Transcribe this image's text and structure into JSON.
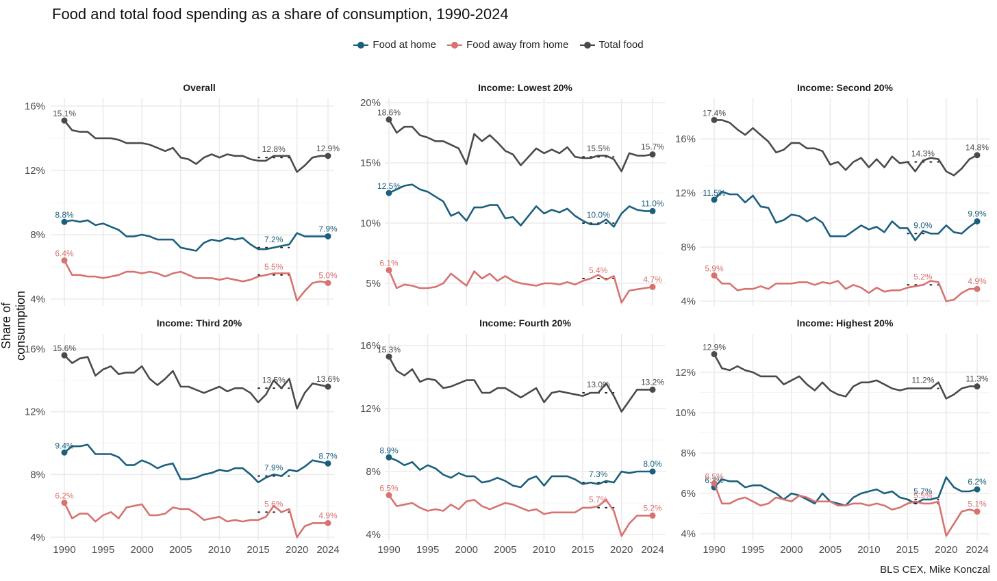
{
  "title": "Food and total food spending as a share of consumption, 1990-2024",
  "ylabel": "Share of consumption",
  "caption": "BLS CEX, Mike Konczal",
  "legend": [
    {
      "label": "Food at home",
      "color": "#1b5f7e"
    },
    {
      "label": "Food away from home",
      "color": "#d7726f"
    },
    {
      "label": "Total food",
      "color": "#4a4a4a"
    }
  ],
  "chart_data": {
    "type": "line",
    "title": "Food and total food spending as a share of consumption, 1990-2024",
    "xlabel": "",
    "ylabel": "Share of consumption",
    "x_ticks": [
      "1990",
      "1995",
      "2000",
      "2005",
      "2010",
      "2015",
      "2020",
      "2024"
    ],
    "x": [
      1990,
      1991,
      1992,
      1993,
      1994,
      1995,
      1996,
      1997,
      1998,
      1999,
      2000,
      2001,
      2002,
      2003,
      2004,
      2005,
      2006,
      2007,
      2008,
      2009,
      2010,
      2011,
      2012,
      2013,
      2014,
      2015,
      2016,
      2017,
      2018,
      2019,
      2020,
      2021,
      2022,
      2023,
      2024
    ],
    "legend_position": "top",
    "grid": true,
    "panels": [
      {
        "title": "Overall",
        "ylim": [
          3.8,
          16.3
        ],
        "yticks": [
          4,
          8,
          12,
          16
        ],
        "ytick_labels": [
          "4%",
          "8%",
          "12%",
          "16%"
        ],
        "series": [
          {
            "name": "Total food",
            "values": [
              15.1,
              14.5,
              14.4,
              14.4,
              14.0,
              14.0,
              14.0,
              13.9,
              13.7,
              13.7,
              13.7,
              13.6,
              13.4,
              13.2,
              13.4,
              12.8,
              12.7,
              12.4,
              12.8,
              13.0,
              12.8,
              13.0,
              12.9,
              12.9,
              12.7,
              12.6,
              12.6,
              12.9,
              12.9,
              12.9,
              11.9,
              12.3,
              12.8,
              12.9,
              12.9
            ],
            "start_label": "15.1%",
            "mid_label": "12.8%",
            "end_label": "12.9%",
            "mid_avg": 12.8
          },
          {
            "name": "Food at home",
            "values": [
              8.8,
              8.9,
              8.8,
              8.9,
              8.6,
              8.7,
              8.5,
              8.3,
              7.9,
              7.9,
              8.0,
              7.9,
              7.7,
              7.7,
              7.7,
              7.2,
              7.1,
              7.0,
              7.5,
              7.7,
              7.6,
              7.8,
              7.7,
              7.8,
              7.4,
              7.1,
              7.1,
              7.2,
              7.3,
              7.4,
              8.1,
              7.9,
              7.9,
              7.9,
              7.9
            ],
            "start_label": "8.8%",
            "mid_label": "7.2%",
            "end_label": "7.9%",
            "mid_avg": 7.2
          },
          {
            "name": "Food away from home",
            "values": [
              6.4,
              5.5,
              5.5,
              5.4,
              5.4,
              5.3,
              5.4,
              5.5,
              5.7,
              5.7,
              5.6,
              5.7,
              5.6,
              5.4,
              5.6,
              5.7,
              5.5,
              5.3,
              5.3,
              5.3,
              5.2,
              5.3,
              5.2,
              5.1,
              5.2,
              5.4,
              5.5,
              5.6,
              5.6,
              5.6,
              3.9,
              4.5,
              5.0,
              5.1,
              5.0
            ],
            "start_label": "6.4%",
            "mid_label": "5.5%",
            "end_label": "5.0%",
            "mid_avg": 5.5
          }
        ]
      },
      {
        "title": "Income: Lowest 20%",
        "ylim": [
          3.3,
          20.3
        ],
        "yticks": [
          5,
          10,
          15,
          20
        ],
        "ytick_labels": [
          "5%",
          "10%",
          "15%",
          "20%"
        ],
        "series": [
          {
            "name": "Total food",
            "values": [
              18.6,
              17.5,
              18.0,
              18.0,
              17.3,
              17.1,
              16.8,
              16.8,
              16.5,
              16.2,
              14.9,
              17.4,
              16.8,
              17.3,
              16.7,
              16.0,
              15.7,
              14.8,
              15.5,
              16.2,
              15.8,
              16.1,
              15.8,
              16.3,
              15.5,
              15.4,
              15.4,
              15.6,
              15.6,
              15.3,
              14.3,
              15.8,
              15.6,
              15.6,
              15.7
            ],
            "start_label": "18.6%",
            "mid_label": "15.5%",
            "end_label": "15.7%",
            "mid_avg": 15.5
          },
          {
            "name": "Food at home",
            "values": [
              12.5,
              12.8,
              13.1,
              13.2,
              12.8,
              12.6,
              12.2,
              11.8,
              10.6,
              10.9,
              10.2,
              11.3,
              11.3,
              11.5,
              11.5,
              10.4,
              10.5,
              9.8,
              10.6,
              11.4,
              10.8,
              11.1,
              10.9,
              11.2,
              10.6,
              10.2,
              9.9,
              9.9,
              10.3,
              9.7,
              10.8,
              11.4,
              11.1,
              11.0,
              11.0
            ],
            "start_label": "12.5%",
            "mid_label": "10.0%",
            "end_label": "11.0%",
            "mid_avg": 10.0
          },
          {
            "name": "Food away from home",
            "values": [
              6.1,
              4.6,
              4.9,
              4.8,
              4.6,
              4.6,
              4.7,
              5.0,
              5.8,
              5.3,
              4.8,
              6.0,
              5.4,
              5.8,
              5.2,
              5.6,
              5.2,
              5.0,
              4.9,
              4.8,
              5.0,
              5.0,
              4.9,
              5.1,
              4.9,
              5.2,
              5.4,
              5.7,
              5.3,
              5.6,
              3.4,
              4.4,
              4.5,
              4.6,
              4.7
            ],
            "start_label": "6.1%",
            "mid_label": "5.4%",
            "end_label": "4.7%",
            "mid_avg": 5.4
          }
        ]
      },
      {
        "title": "Income: Second 20%",
        "ylim": [
          3.8,
          18.0
        ],
        "yticks": [
          4,
          8,
          12,
          16
        ],
        "ytick_labels": [
          "4%",
          "8%",
          "12%",
          "16%"
        ],
        "series": [
          {
            "name": "Total food",
            "values": [
              17.4,
              17.4,
              17.2,
              16.7,
              16.3,
              16.8,
              16.3,
              15.8,
              15.0,
              15.2,
              15.7,
              15.7,
              15.3,
              15.3,
              15.1,
              14.1,
              14.3,
              13.7,
              14.3,
              14.6,
              13.9,
              14.5,
              13.9,
              14.7,
              14.2,
              14.3,
              13.6,
              14.4,
              14.6,
              14.5,
              13.6,
              13.3,
              13.8,
              14.5,
              14.8
            ],
            "start_label": "17.4%",
            "mid_label": "14.3%",
            "end_label": "14.8%",
            "mid_avg": 14.3
          },
          {
            "name": "Food at home",
            "values": [
              11.5,
              12.1,
              11.9,
              11.9,
              11.3,
              11.8,
              11.0,
              10.9,
              9.8,
              10.0,
              10.4,
              10.3,
              9.9,
              10.2,
              9.8,
              8.8,
              8.8,
              8.8,
              9.2,
              9.6,
              9.3,
              9.5,
              9.1,
              9.9,
              9.4,
              9.4,
              8.5,
              9.2,
              9.0,
              9.0,
              9.6,
              9.1,
              9.0,
              9.5,
              9.9
            ],
            "start_label": "11.5%",
            "mid_label": "9.0%",
            "end_label": "9.9%",
            "mid_avg": 9.0
          },
          {
            "name": "Food away from home",
            "values": [
              5.9,
              5.3,
              5.3,
              4.8,
              4.9,
              4.9,
              5.1,
              4.9,
              5.3,
              5.3,
              5.3,
              5.4,
              5.4,
              5.2,
              5.4,
              5.3,
              5.5,
              4.9,
              5.2,
              5.0,
              4.6,
              5.0,
              4.7,
              4.8,
              4.8,
              5.0,
              5.1,
              5.2,
              5.5,
              5.4,
              4.0,
              4.1,
              4.6,
              4.9,
              4.9
            ],
            "start_label": "5.9%",
            "mid_label": "5.2%",
            "end_label": "4.9%",
            "mid_avg": 5.2
          }
        ]
      },
      {
        "title": "Income: Third 20%",
        "ylim": [
          3.8,
          16.8
        ],
        "yticks": [
          4,
          8,
          12,
          16
        ],
        "ytick_labels": [
          "4%",
          "8%",
          "12%",
          "16%"
        ],
        "series": [
          {
            "name": "Total food",
            "values": [
              15.6,
              15.1,
              15.4,
              15.5,
              14.3,
              14.7,
              14.9,
              14.4,
              14.5,
              14.5,
              14.9,
              14.1,
              13.7,
              14.1,
              14.6,
              13.6,
              13.6,
              13.4,
              13.2,
              13.4,
              13.6,
              13.3,
              13.5,
              13.5,
              13.2,
              12.6,
              13.1,
              14.0,
              13.5,
              14.1,
              12.2,
              13.2,
              13.8,
              13.7,
              13.6
            ],
            "start_label": "15.6%",
            "mid_label": "13.5%",
            "end_label": "13.6%",
            "mid_avg": 13.5
          },
          {
            "name": "Food at home",
            "values": [
              9.4,
              9.8,
              9.8,
              9.9,
              9.3,
              9.3,
              9.3,
              9.1,
              8.6,
              8.6,
              8.9,
              8.7,
              8.4,
              8.6,
              8.7,
              7.7,
              7.7,
              7.8,
              8.0,
              8.1,
              8.3,
              8.2,
              8.4,
              8.4,
              8.0,
              7.5,
              7.8,
              8.0,
              7.9,
              8.3,
              8.2,
              8.5,
              8.9,
              8.8,
              8.7
            ],
            "start_label": "9.4%",
            "mid_label": "7.9%",
            "end_label": "8.7%",
            "mid_avg": 7.9
          },
          {
            "name": "Food away from home",
            "values": [
              6.2,
              5.2,
              5.5,
              5.5,
              5.0,
              5.4,
              5.6,
              5.2,
              5.9,
              6.0,
              6.1,
              5.4,
              5.4,
              5.5,
              5.9,
              5.8,
              5.8,
              5.5,
              5.1,
              5.2,
              5.3,
              5.0,
              5.1,
              5.0,
              5.1,
              5.1,
              5.3,
              6.0,
              5.6,
              5.8,
              4.0,
              4.7,
              4.9,
              4.9,
              4.9
            ],
            "start_label": "6.2%",
            "mid_label": "5.6%",
            "end_label": "4.9%",
            "mid_avg": 5.6
          }
        ]
      },
      {
        "title": "Income: Fourth 20%",
        "ylim": [
          3.8,
          16.3
        ],
        "yticks": [
          4,
          8,
          12,
          16
        ],
        "ytick_labels": [
          "4%",
          "8%",
          "12%",
          "16%"
        ],
        "series": [
          {
            "name": "Total food",
            "values": [
              15.3,
              14.4,
              14.1,
              14.5,
              13.7,
              13.9,
              13.8,
              13.3,
              13.4,
              13.6,
              13.8,
              13.8,
              13.0,
              13.0,
              13.3,
              13.3,
              13.0,
              12.7,
              13.0,
              13.3,
              12.4,
              13.0,
              13.1,
              13.0,
              12.9,
              12.8,
              13.0,
              13.0,
              13.6,
              12.8,
              11.8,
              12.5,
              13.2,
              13.2,
              13.2
            ],
            "start_label": "15.3%",
            "mid_label": "13.0%",
            "end_label": "13.2%",
            "mid_avg": 13.0
          },
          {
            "name": "Food at home",
            "values": [
              8.9,
              8.7,
              8.4,
              8.6,
              8.1,
              8.4,
              8.2,
              7.8,
              7.6,
              7.9,
              7.7,
              7.7,
              7.3,
              7.4,
              7.6,
              7.4,
              7.1,
              7.0,
              7.5,
              7.7,
              7.1,
              7.7,
              7.7,
              7.7,
              7.5,
              7.2,
              7.3,
              7.2,
              7.4,
              7.3,
              8.0,
              7.9,
              8.0,
              8.0,
              8.0
            ],
            "start_label": "8.9%",
            "mid_label": "7.3%",
            "end_label": "8.0%",
            "mid_avg": 7.3
          },
          {
            "name": "Food away from home",
            "values": [
              6.5,
              5.8,
              5.9,
              6.0,
              5.7,
              5.5,
              5.6,
              5.5,
              5.9,
              5.6,
              6.1,
              6.2,
              5.8,
              5.6,
              5.8,
              6.0,
              5.9,
              5.7,
              5.5,
              5.6,
              5.3,
              5.4,
              5.4,
              5.4,
              5.4,
              5.7,
              5.7,
              5.8,
              6.2,
              5.5,
              3.9,
              4.7,
              5.2,
              5.2,
              5.2
            ],
            "start_label": "6.5%",
            "mid_label": "5.7%",
            "end_label": "5.2%",
            "mid_avg": 5.7
          }
        ]
      },
      {
        "title": "Income: Highest 20%",
        "ylim": [
          3.8,
          13.8
        ],
        "yticks": [
          4,
          6,
          8,
          10,
          12
        ],
        "ytick_labels": [
          "4%",
          "6%",
          "8%",
          "10%",
          "12%"
        ],
        "series": [
          {
            "name": "Total food",
            "values": [
              12.9,
              12.2,
              12.1,
              12.3,
              12.1,
              12.0,
              11.8,
              11.8,
              11.8,
              11.4,
              11.6,
              11.8,
              11.4,
              11.1,
              11.5,
              11.1,
              10.9,
              10.8,
              11.3,
              11.5,
              11.5,
              11.6,
              11.4,
              11.2,
              11.1,
              11.2,
              11.2,
              11.2,
              11.2,
              11.5,
              10.7,
              10.9,
              11.2,
              11.3,
              11.3
            ],
            "start_label": "12.9%",
            "mid_label": "11.2%",
            "end_label": "11.3%",
            "mid_avg": 11.2
          },
          {
            "name": "Food at home",
            "values": [
              6.3,
              6.7,
              6.6,
              6.6,
              6.3,
              6.4,
              6.4,
              6.2,
              6.0,
              5.7,
              6.0,
              5.9,
              5.7,
              5.5,
              6.0,
              5.6,
              5.5,
              5.4,
              5.8,
              6.0,
              6.1,
              6.2,
              6.0,
              6.1,
              5.8,
              5.7,
              5.5,
              5.7,
              5.7,
              5.8,
              6.8,
              6.3,
              6.1,
              6.1,
              6.2
            ],
            "start_label": "6.3%",
            "mid_label": "5.7%",
            "end_label": "6.2%",
            "mid_avg": 5.7
          },
          {
            "name": "Food away from home",
            "values": [
              6.5,
              5.5,
              5.5,
              5.7,
              5.8,
              5.6,
              5.4,
              5.5,
              5.8,
              5.7,
              5.6,
              5.9,
              5.8,
              5.6,
              5.6,
              5.6,
              5.4,
              5.4,
              5.5,
              5.5,
              5.4,
              5.5,
              5.4,
              5.2,
              5.3,
              5.5,
              5.6,
              5.5,
              5.5,
              5.6,
              3.9,
              4.5,
              5.1,
              5.2,
              5.1
            ],
            "start_label": "6.5%",
            "mid_label": "5.5%",
            "end_label": "5.1%",
            "mid_avg": 5.5
          }
        ]
      }
    ]
  }
}
